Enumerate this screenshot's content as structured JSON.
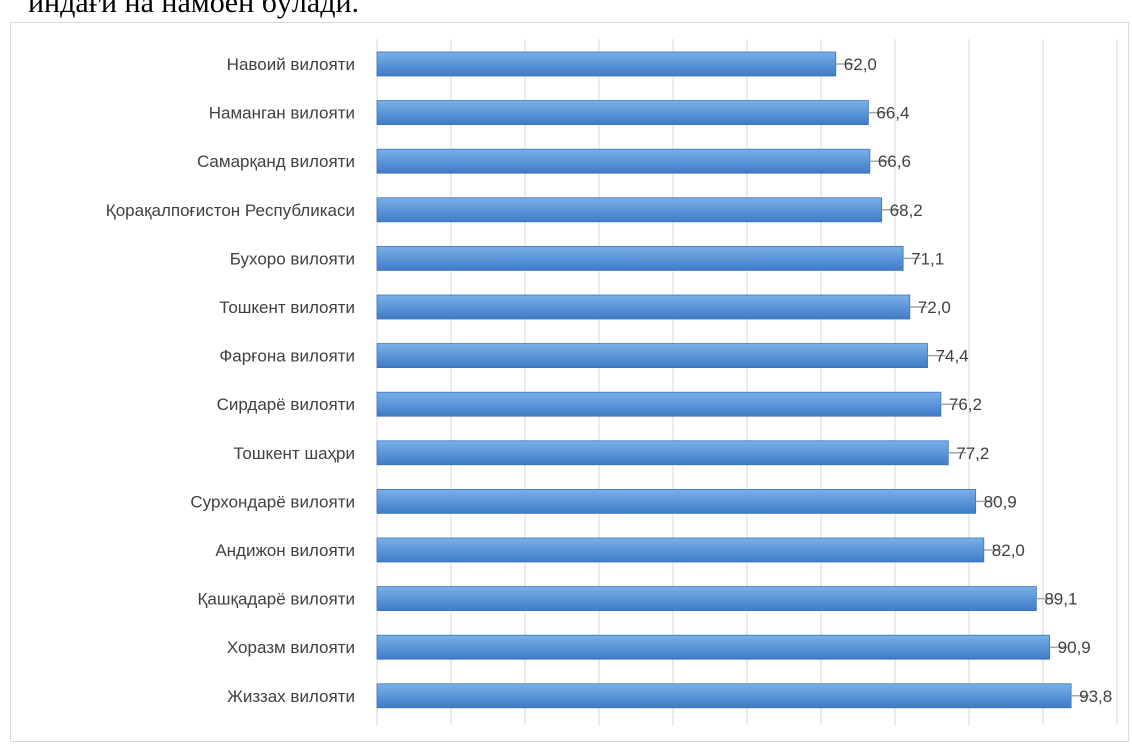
{
  "header_text": "индағи на намоён бўлади.",
  "colors": {
    "bar_top": "#7ab0e8",
    "bar_bottom": "#3f7bc7",
    "bar_border": "#3a73bd",
    "grid": "#d9d9d9",
    "leader": "#a6a6a6",
    "text": "#404040"
  },
  "chart_data": {
    "type": "bar",
    "orientation": "horizontal",
    "categories": [
      "Навоий вилояти",
      "Наманган вилояти",
      "Самарқанд вилояти",
      "Қорақалпоғистон Республикаси",
      "Бухоро вилояти",
      "Тошкент вилояти",
      "Фарғона вилояти",
      "Сирдарё вилояти",
      "Тошкент шаҳри",
      "Сурхондарё вилояти",
      "Андижон вилояти",
      "Қашқадарё вилояти",
      "Хоразм вилояти",
      "Жиззах вилояти"
    ],
    "values": [
      62.0,
      66.4,
      66.6,
      68.2,
      71.1,
      72.0,
      74.4,
      76.2,
      77.2,
      80.9,
      82.0,
      89.1,
      90.9,
      93.8
    ],
    "value_labels": [
      "62,0",
      "66,4",
      "66,6",
      "68,2",
      "71,1",
      "72,0",
      "74,4",
      "76,2",
      "77,2",
      "80,9",
      "82,0",
      "89,1",
      "90,9",
      "93,8"
    ],
    "xlim": [
      0,
      100
    ],
    "grid": true,
    "axis_tick_labels_visible": false,
    "legend": "none"
  }
}
